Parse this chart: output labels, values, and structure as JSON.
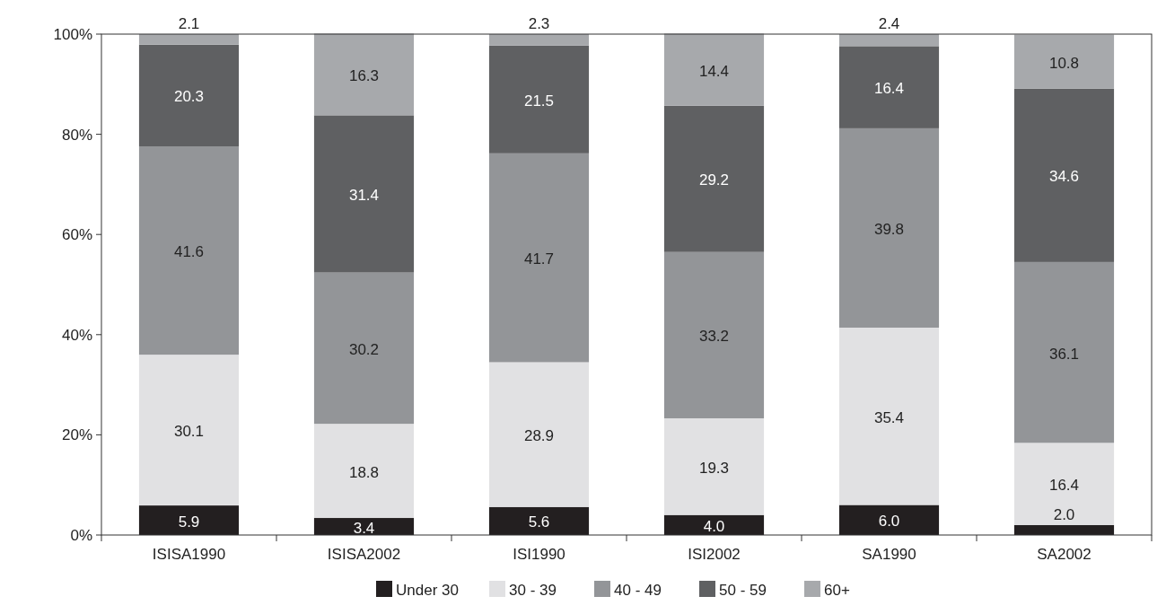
{
  "chart_data": {
    "type": "bar",
    "stacked": true,
    "categories": [
      "ISISA1990",
      "ISISA2002",
      "ISI1990",
      "ISI2002",
      "SA1990",
      "SA2002"
    ],
    "series": [
      {
        "name": "Under 30",
        "color": "#231f20",
        "values": [
          5.9,
          3.4,
          5.6,
          4.0,
          6.0,
          2.0
        ],
        "value_labels": [
          "5.9",
          "3.4",
          "5.6",
          "4.0",
          "6.0",
          "2.0"
        ]
      },
      {
        "name": "30 - 39",
        "color": "#e1e1e3",
        "values": [
          30.1,
          18.8,
          28.9,
          19.3,
          35.4,
          16.4
        ],
        "value_labels": [
          "30.1",
          "18.8",
          "28.9",
          "19.3",
          "35.4",
          "16.4"
        ]
      },
      {
        "name": "40 - 49",
        "color": "#939598",
        "values": [
          41.6,
          30.2,
          41.7,
          33.2,
          39.8,
          36.1
        ],
        "value_labels": [
          "41.6",
          "30.2",
          "41.7",
          "33.2",
          "39.8",
          "36.1"
        ]
      },
      {
        "name": "50 - 59",
        "color": "#5f6062",
        "values": [
          20.3,
          31.4,
          21.5,
          29.2,
          16.4,
          34.6
        ],
        "value_labels": [
          "20.3",
          "31.4",
          "21.5",
          "29.2",
          "16.4",
          "34.6"
        ]
      },
      {
        "name": "60+",
        "color": "#a7a9ac",
        "values": [
          2.1,
          16.3,
          2.3,
          14.4,
          2.4,
          10.8
        ],
        "value_labels": [
          "2.1",
          "16.3",
          "2.3",
          "14.4",
          "2.4",
          "10.8"
        ]
      }
    ],
    "ylim": [
      0,
      100
    ],
    "yticks": [
      {
        "value": 0,
        "label": "0%"
      },
      {
        "value": 20,
        "label": "20%"
      },
      {
        "value": 40,
        "label": "40%"
      },
      {
        "value": 60,
        "label": "60%"
      },
      {
        "value": 80,
        "label": "80%"
      },
      {
        "value": 100,
        "label": "100%"
      }
    ],
    "grid": false,
    "legend": "bottom"
  }
}
